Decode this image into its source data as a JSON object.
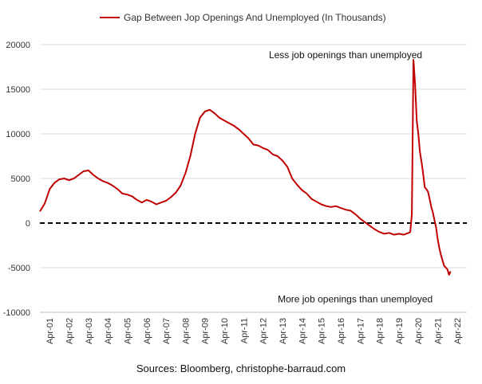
{
  "chart_data": {
    "type": "line",
    "title": "",
    "xlabel": "",
    "ylabel": "",
    "ylim": [
      -10000,
      20000
    ],
    "y_ticks": [
      20000,
      15000,
      10000,
      5000,
      0,
      -5000,
      -10000
    ],
    "x_ticks": [
      "Apr-01",
      "Apr-02",
      "Apr-03",
      "Apr-04",
      "Apr-05",
      "Apr-06",
      "Apr-07",
      "Apr-08",
      "Apr-09",
      "Apr-10",
      "Apr-11",
      "Apr-12",
      "Apr-13",
      "Apr-14",
      "Apr-15",
      "Apr-16",
      "Apr-17",
      "Apr-18",
      "Apr-19",
      "Apr-20",
      "Apr-21",
      "Apr-22"
    ],
    "x_start": "2001-01",
    "grid": "horizontal",
    "legend_position": "top-center",
    "reference_line": {
      "y": 0,
      "style": "dashed",
      "color": "#000000"
    },
    "series": [
      {
        "name": "Gap Between Jop Openings And Unemployed (In Thousands)",
        "color": "#c00000",
        "points": [
          [
            "2001-01",
            1300
          ],
          [
            "2001-04",
            2200
          ],
          [
            "2001-07",
            3800
          ],
          [
            "2001-10",
            4500
          ],
          [
            "2002-01",
            4900
          ],
          [
            "2002-04",
            5000
          ],
          [
            "2002-07",
            4800
          ],
          [
            "2002-10",
            5000
          ],
          [
            "2003-01",
            5400
          ],
          [
            "2003-04",
            5800
          ],
          [
            "2003-07",
            5900
          ],
          [
            "2003-10",
            5400
          ],
          [
            "2004-01",
            5000
          ],
          [
            "2004-04",
            4700
          ],
          [
            "2004-07",
            4500
          ],
          [
            "2004-10",
            4200
          ],
          [
            "2005-01",
            3800
          ],
          [
            "2005-04",
            3300
          ],
          [
            "2005-07",
            3200
          ],
          [
            "2005-10",
            3000
          ],
          [
            "2006-01",
            2600
          ],
          [
            "2006-04",
            2300
          ],
          [
            "2006-07",
            2600
          ],
          [
            "2006-10",
            2400
          ],
          [
            "2007-01",
            2100
          ],
          [
            "2007-04",
            2300
          ],
          [
            "2007-07",
            2500
          ],
          [
            "2007-10",
            2900
          ],
          [
            "2008-01",
            3400
          ],
          [
            "2008-04",
            4200
          ],
          [
            "2008-07",
            5600
          ],
          [
            "2008-10",
            7500
          ],
          [
            "2009-01",
            10000
          ],
          [
            "2009-04",
            11800
          ],
          [
            "2009-07",
            12500
          ],
          [
            "2009-10",
            12700
          ],
          [
            "2010-01",
            12300
          ],
          [
            "2010-04",
            11800
          ],
          [
            "2010-07",
            11500
          ],
          [
            "2010-10",
            11200
          ],
          [
            "2011-01",
            10900
          ],
          [
            "2011-04",
            10500
          ],
          [
            "2011-07",
            10000
          ],
          [
            "2011-10",
            9500
          ],
          [
            "2012-01",
            8800
          ],
          [
            "2012-04",
            8700
          ],
          [
            "2012-07",
            8400
          ],
          [
            "2012-10",
            8200
          ],
          [
            "2013-01",
            7700
          ],
          [
            "2013-04",
            7500
          ],
          [
            "2013-07",
            7000
          ],
          [
            "2013-10",
            6300
          ],
          [
            "2014-01",
            5000
          ],
          [
            "2014-04",
            4300
          ],
          [
            "2014-07",
            3700
          ],
          [
            "2014-10",
            3300
          ],
          [
            "2015-01",
            2700
          ],
          [
            "2015-04",
            2400
          ],
          [
            "2015-07",
            2100
          ],
          [
            "2015-10",
            1900
          ],
          [
            "2016-01",
            1800
          ],
          [
            "2016-04",
            1900
          ],
          [
            "2016-07",
            1700
          ],
          [
            "2016-10",
            1500
          ],
          [
            "2017-01",
            1400
          ],
          [
            "2017-04",
            1000
          ],
          [
            "2017-07",
            500
          ],
          [
            "2017-10",
            100
          ],
          [
            "2018-01",
            -300
          ],
          [
            "2018-04",
            -700
          ],
          [
            "2018-07",
            -1000
          ],
          [
            "2018-10",
            -1200
          ],
          [
            "2019-01",
            -1100
          ],
          [
            "2019-04",
            -1300
          ],
          [
            "2019-07",
            -1200
          ],
          [
            "2019-10",
            -1300
          ],
          [
            "2020-01",
            -1100
          ],
          [
            "2020-02",
            -1000
          ],
          [
            "2020-03",
            1000
          ],
          [
            "2020-04",
            18300
          ],
          [
            "2020-05",
            15500
          ],
          [
            "2020-06",
            11500
          ],
          [
            "2020-07",
            10000
          ],
          [
            "2020-08",
            8000
          ],
          [
            "2020-09",
            6800
          ],
          [
            "2020-10",
            5500
          ],
          [
            "2020-11",
            4000
          ],
          [
            "2020-12",
            3800
          ],
          [
            "2021-01",
            3500
          ],
          [
            "2021-02",
            2700
          ],
          [
            "2021-03",
            1800
          ],
          [
            "2021-04",
            1200
          ],
          [
            "2021-05",
            300
          ],
          [
            "2021-06",
            -500
          ],
          [
            "2021-07",
            -1800
          ],
          [
            "2021-08",
            -2800
          ],
          [
            "2021-09",
            -3600
          ],
          [
            "2021-10",
            -4200
          ],
          [
            "2021-11",
            -4800
          ],
          [
            "2021-12",
            -5000
          ],
          [
            "2022-01",
            -5200
          ],
          [
            "2022-02",
            -5800
          ],
          [
            "2022-03",
            -5400
          ]
        ]
      }
    ],
    "annotations": [
      {
        "text": "Less job openings than unemployed",
        "x": "2016-10",
        "y": 18500
      },
      {
        "text": "More job openings than unemployed",
        "x": "2017-04",
        "y": -8900
      }
    ],
    "source": "Sources: Bloomberg, christophe-barraud.com"
  }
}
